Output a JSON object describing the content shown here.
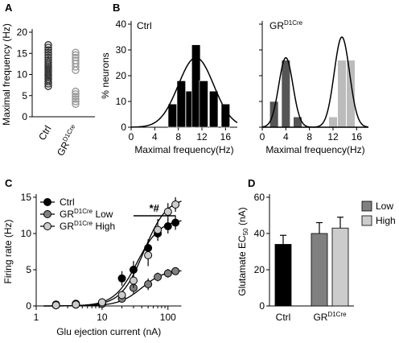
{
  "panels": {
    "a": "A",
    "b": "B",
    "c": "C",
    "d": "D"
  },
  "chart_data": [
    {
      "panel": "A",
      "type": "scatter",
      "ylabel": "Maximal frequency (Hz)",
      "ylim": [
        0,
        20
      ],
      "yticks": [
        "0",
        "5",
        "10",
        "15",
        "20"
      ],
      "categories": [
        {
          "base": "Ctrl",
          "sup": ""
        },
        {
          "base": "GR",
          "sup": "D1Cre"
        }
      ],
      "series": [
        {
          "category": "Ctrl",
          "marker": "open-circle",
          "color": "#333333",
          "values": [
            7.2,
            7.8,
            8.3,
            8.8,
            9.2,
            9.6,
            10.0,
            10.4,
            10.8,
            11.2,
            11.6,
            12.0,
            12.4,
            12.9,
            13.4,
            14.0,
            14.6,
            15.2,
            15.8,
            16.4,
            17.0
          ]
        },
        {
          "category": "GRD1Cre",
          "marker": "open-circle",
          "color": "#999999",
          "values": [
            3.0,
            3.6,
            4.2,
            4.8,
            5.4,
            6.0,
            11.0,
            11.8,
            12.6,
            13.3,
            14.0,
            14.6,
            15.2
          ]
        }
      ]
    },
    {
      "panel": "B-Ctrl",
      "type": "bar",
      "title": "Ctrl",
      "ylabel": "% neurons",
      "xlabel": "Maximal frequency(Hz)",
      "xlim": [
        0,
        18
      ],
      "ylim": [
        0,
        40
      ],
      "xticks": [
        "0",
        "4",
        "8",
        "12",
        "16"
      ],
      "yticks": [
        "0",
        "10",
        "20",
        "30",
        "40"
      ],
      "bars": [
        {
          "x": 7,
          "value": 9,
          "color": "#000000"
        },
        {
          "x": 8.5,
          "value": 18,
          "color": "#000000"
        },
        {
          "x": 10,
          "value": 14,
          "color": "#000000"
        },
        {
          "x": 11,
          "value": 32,
          "color": "#000000"
        },
        {
          "x": 12.3,
          "value": 18,
          "color": "#000000"
        },
        {
          "x": 14,
          "value": 14,
          "color": "#000000"
        },
        {
          "x": 16,
          "value": 9,
          "color": "#000000"
        }
      ],
      "fit": {
        "mu": 11,
        "sigma": 3,
        "peak": 27
      }
    },
    {
      "panel": "B-GR",
      "type": "bar",
      "title": {
        "base": "GR",
        "sup": "D1Cre"
      },
      "xlabel": "Maximal frequency(Hz)",
      "xlim": [
        0,
        18
      ],
      "ylim": [
        0,
        40
      ],
      "xticks": [
        "0",
        "4",
        "8",
        "12",
        "16"
      ],
      "bars": [
        {
          "x": 2,
          "value": 10,
          "color": "#555555"
        },
        {
          "x": 4,
          "value": 26,
          "color": "#555555"
        },
        {
          "x": 6,
          "value": 4,
          "color": "#555555"
        },
        {
          "x": 12,
          "value": 4,
          "color": "#bbbbbb"
        },
        {
          "x": 13.5,
          "value": 26,
          "color": "#bbbbbb"
        },
        {
          "x": 15,
          "value": 26,
          "color": "#bbbbbb"
        }
      ],
      "fits": [
        {
          "mu": 4,
          "sigma": 1.2,
          "peak": 27
        },
        {
          "mu": 13.5,
          "sigma": 1.3,
          "peak": 35
        }
      ]
    },
    {
      "panel": "C",
      "type": "line",
      "xscale": "log",
      "xlabel": "Glu ejection current (nA)",
      "ylabel": "Firing rate (Hz)",
      "xlim": [
        1,
        160
      ],
      "ylim": [
        0,
        15
      ],
      "xticks": [
        {
          "v": 1,
          "label": "1"
        },
        {
          "v": 10,
          "label": "10"
        },
        {
          "v": 100,
          "label": "100"
        }
      ],
      "yticks": [
        "0",
        "5",
        "10",
        "15"
      ],
      "annotation": "*#",
      "series": [
        {
          "name": {
            "base": "Ctrl",
            "sup": "",
            "tail": ""
          },
          "fill": "#000000",
          "x": [
            2,
            4,
            10,
            20,
            30,
            50,
            70,
            100,
            130
          ],
          "y": [
            0.2,
            0.3,
            0.5,
            3.8,
            5.0,
            8.0,
            10.0,
            11.0,
            11.5
          ],
          "err": [
            0.2,
            0.2,
            0.3,
            1.0,
            1.2,
            1.2,
            1.0,
            1.0,
            1.0
          ],
          "fit": {
            "top": 12,
            "ec50": 34,
            "n": 2.5
          }
        },
        {
          "name": {
            "base": "GR",
            "sup": "D1Cre",
            "tail": " Low"
          },
          "fill": "#808080",
          "x": [
            2,
            4,
            10,
            20,
            30,
            50,
            70,
            100,
            130
          ],
          "y": [
            0.1,
            0.2,
            0.3,
            1.0,
            2.5,
            3.0,
            4.0,
            4.5,
            4.8
          ],
          "err": [
            0.2,
            0.2,
            0.2,
            0.5,
            0.8,
            0.8,
            0.6,
            0.6,
            0.5
          ],
          "fit": {
            "top": 5,
            "ec50": 40,
            "n": 2.5
          }
        },
        {
          "name": {
            "base": "GR",
            "sup": "D1Cre",
            "tail": " High"
          },
          "fill": "#cccccc",
          "x": [
            2,
            4,
            10,
            20,
            30,
            50,
            70,
            100,
            130
          ],
          "y": [
            0.1,
            0.2,
            0.5,
            1.5,
            3.5,
            7.0,
            10.5,
            13.0,
            14.0
          ],
          "err": [
            0.2,
            0.2,
            0.2,
            0.6,
            1.0,
            1.5,
            1.5,
            1.2,
            1.0
          ],
          "fit": {
            "top": 15,
            "ec50": 43,
            "n": 2.5
          }
        }
      ]
    },
    {
      "panel": "D",
      "type": "bar",
      "ylabel": {
        "base": "Glutamate EC",
        "sub": "50",
        "tail": " (nA)"
      },
      "ylim": [
        0,
        60
      ],
      "yticks": [
        "0",
        "20",
        "40",
        "60"
      ],
      "categories": [
        {
          "base": "Ctrl",
          "sup": ""
        },
        {
          "base": "GR",
          "sup": "D1Cre"
        }
      ],
      "legend": [
        {
          "name": "Low",
          "color": "#808080"
        },
        {
          "name": "High",
          "color": "#cccccc"
        }
      ],
      "bars": [
        {
          "group": 0,
          "value": 34,
          "err": 5,
          "color": "#000000"
        },
        {
          "group": 1,
          "value": 40,
          "err": 6,
          "color": "#808080"
        },
        {
          "group": 1,
          "value": 43,
          "err": 6,
          "color": "#cccccc"
        }
      ]
    }
  ]
}
